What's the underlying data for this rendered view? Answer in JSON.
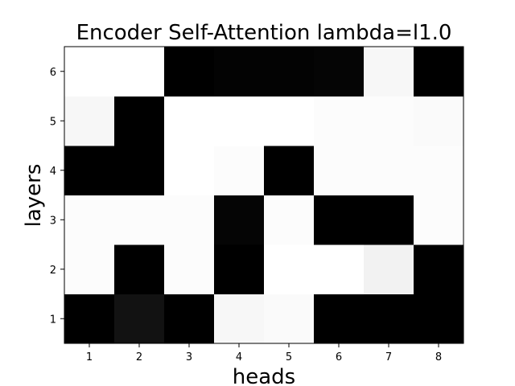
{
  "chart_data": {
    "type": "heatmap",
    "title": "Encoder Self-Attention lambda=l1.0",
    "xlabel": "heads",
    "ylabel": "layers",
    "x_categories": [
      "1",
      "2",
      "3",
      "4",
      "5",
      "6",
      "7",
      "8"
    ],
    "y_categories": [
      "1",
      "2",
      "3",
      "4",
      "5",
      "6"
    ],
    "value_range": [
      0,
      1
    ],
    "colormap": "gray (0 = black, 1 = white)",
    "grid": false,
    "rows": [
      {
        "layer": "1",
        "values": [
          0.0,
          0.07,
          0.0,
          0.97,
          0.98,
          0.0,
          0.0,
          0.0
        ]
      },
      {
        "layer": "2",
        "values": [
          0.99,
          0.0,
          0.99,
          0.0,
          1.0,
          1.0,
          0.95,
          0.0
        ]
      },
      {
        "layer": "3",
        "values": [
          0.99,
          0.99,
          0.99,
          0.02,
          0.99,
          0.0,
          0.0,
          0.99
        ]
      },
      {
        "layer": "4",
        "values": [
          0.0,
          0.0,
          1.0,
          0.99,
          0.0,
          0.99,
          0.99,
          0.99
        ]
      },
      {
        "layer": "5",
        "values": [
          0.97,
          0.0,
          1.0,
          1.0,
          1.0,
          0.99,
          0.99,
          0.98
        ]
      },
      {
        "layer": "6",
        "values": [
          1.0,
          1.0,
          0.0,
          0.01,
          0.01,
          0.02,
          0.97,
          0.0
        ]
      }
    ]
  }
}
